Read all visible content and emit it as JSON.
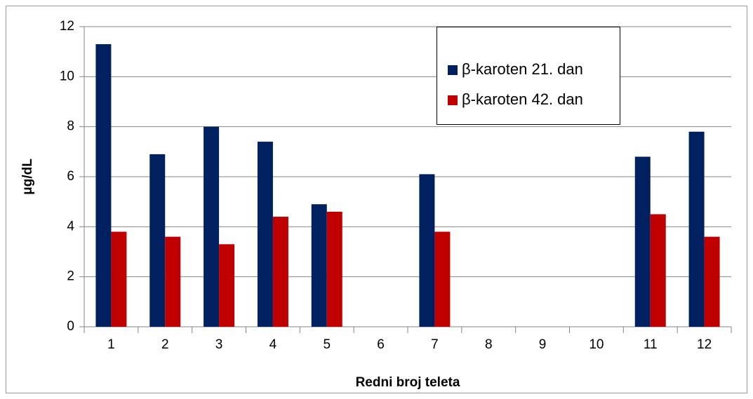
{
  "chart_data": {
    "type": "bar",
    "y_label": "μg/dL",
    "x_label": "Redni broj teleta",
    "categories": [
      "1",
      "2",
      "3",
      "4",
      "5",
      "6",
      "7",
      "8",
      "9",
      "10",
      "11",
      "12"
    ],
    "series": [
      {
        "name": "β-karoten 21. dan",
        "color": "#002060",
        "values": [
          11.3,
          6.9,
          8.0,
          7.4,
          4.9,
          null,
          6.1,
          null,
          null,
          null,
          6.8,
          7.8
        ]
      },
      {
        "name": "β-karoten 42. dan",
        "color": "#c00000",
        "values": [
          3.8,
          3.6,
          3.3,
          4.4,
          4.6,
          null,
          3.8,
          null,
          null,
          null,
          4.5,
          3.6
        ]
      }
    ],
    "ylim": [
      0,
      12
    ],
    "yticks": [
      0,
      2,
      4,
      6,
      8,
      10,
      12
    ],
    "grid": true
  }
}
